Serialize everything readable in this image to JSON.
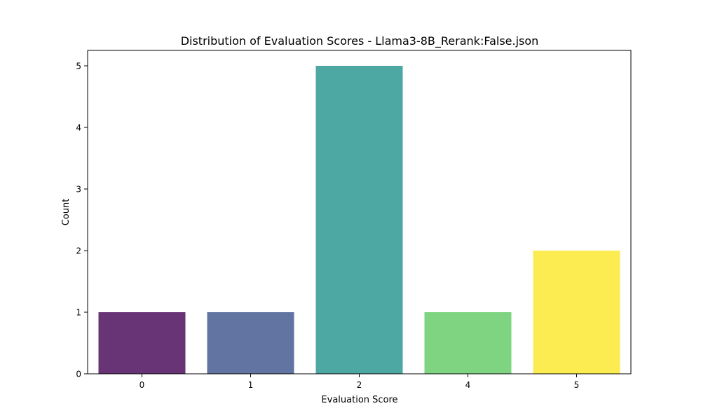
{
  "chart_data": {
    "type": "bar",
    "title": "Distribution of Evaluation Scores - Llama3-8B_Rerank:False.json",
    "xlabel": "Evaluation Score",
    "ylabel": "Count",
    "categories": [
      "0",
      "1",
      "2",
      "4",
      "5"
    ],
    "values": [
      1,
      1,
      5,
      1,
      2
    ],
    "colors": [
      "#440154",
      "#3b528b",
      "#21918c",
      "#5ec962",
      "#fde725"
    ],
    "bar_opacity": 0.8,
    "ylim": [
      0,
      5.25
    ],
    "yticks": [
      0,
      1,
      2,
      3,
      4,
      5
    ],
    "grid": false,
    "legend": "none"
  }
}
